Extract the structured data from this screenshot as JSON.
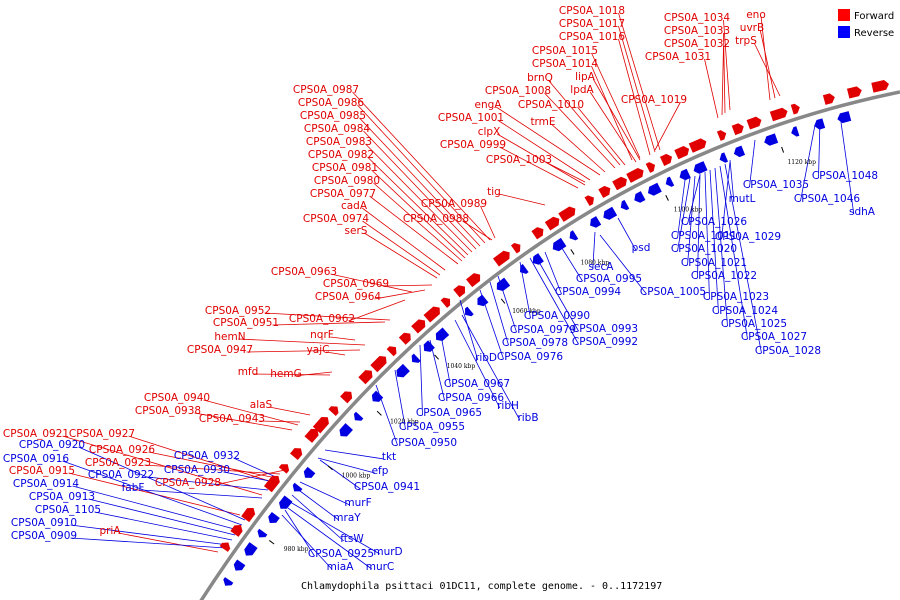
{
  "caption": "Chlamydophila psittaci 01DC11, complete genome. - 0..1172197",
  "legend": [
    {
      "label": "Forward",
      "color": "#ff0000"
    },
    {
      "label": "Reverse",
      "color": "#0000ff"
    }
  ],
  "colors": {
    "forward": "#e00000",
    "reverse": "#0000e0",
    "backbone": "#888888"
  },
  "ticks": [
    "980 kbp",
    "1000 kbp",
    "1020 kbp",
    "1040 kbp",
    "1060 kbp",
    "1080 kbp",
    "1100 kbp",
    "1120 kbp"
  ],
  "forward_genes": [
    "CPS0A_1018",
    "CPS0A_1017",
    "CPS0A_1016",
    "CPS0A_1015",
    "CPS0A_1014",
    "CPS0A_1034",
    "eno",
    "uvrB",
    "CPS0A_1033",
    "trpS",
    "CPS0A_1032",
    "CPS0A_1031",
    "brnQ",
    "lipA",
    "CPS0A_1008",
    "lpdA",
    "engA",
    "CPS0A_1010",
    "CPS0A_1019",
    "CPS0A_1001",
    "trmE",
    "clpX",
    "CPS0A_0999",
    "CPS0A_1003",
    "CPS0A_0987",
    "CPS0A_0986",
    "CPS0A_0985",
    "CPS0A_0984",
    "CPS0A_0983",
    "CPS0A_0982",
    "CPS0A_0981",
    "CPS0A_0980",
    "CPS0A_0977",
    "tig",
    "cadA",
    "CPS0A_0989",
    "CPS0A_0974",
    "CPS0A_0988",
    "serS",
    "CPS0A_0963",
    "CPS0A_0969",
    "CPS0A_0964",
    "CPS0A_0952",
    "CPS0A_0951",
    "CPS0A_0962",
    "hemN",
    "nqrF",
    "CPS0A_0947",
    "yajC",
    "mfd",
    "hemG",
    "alaS",
    "CPS0A_0940",
    "CPS0A_0938",
    "CPS0A_0943",
    "CPS0A_0921",
    "CPS0A_0927",
    "CPS0A_0926",
    "CPS0A_0923",
    "CPS0A_0915",
    "CPS0A_0928",
    "priA"
  ],
  "reverse_genes": [
    "CPS0A_0920",
    "CPS0A_0916",
    "CPS0A_0914",
    "CPS0A_0913",
    "CPS0A_1105",
    "CPS0A_0910",
    "CPS0A_0909",
    "CPS0A_0932",
    "CPS0A_0930",
    "CPS0A_0922",
    "fabF",
    "tkt",
    "efp",
    "CPS0A_0941",
    "murF",
    "mraY",
    "ftsW",
    "murD",
    "CPS0A_0925",
    "miaA",
    "murC",
    "CPS0A_0950",
    "CPS0A_0955",
    "CPS0A_0965",
    "CPS0A_0966",
    "ribH",
    "ribB",
    "CPS0A_0967",
    "ribD",
    "CPS0A_0976",
    "CPS0A_0978",
    "CPS0A_0979",
    "CPS0A_0990",
    "CPS0A_0993",
    "CPS0A_0992",
    "CPS0A_0994",
    "CPS0A_0995",
    "secA",
    "psd",
    "CPS0A_1005",
    "CPS0A_1011",
    "CPS0A_1026",
    "CPS0A_1029",
    "CPS0A_1020",
    "CPS0A_1021",
    "CPS0A_1022",
    "CPS0A_1023",
    "CPS0A_1024",
    "CPS0A_1025",
    "CPS0A_1027",
    "CPS0A_1028",
    "mutL",
    "CPS0A_1035",
    "CPS0A_1048",
    "CPS0A_1046",
    "sdhA"
  ]
}
